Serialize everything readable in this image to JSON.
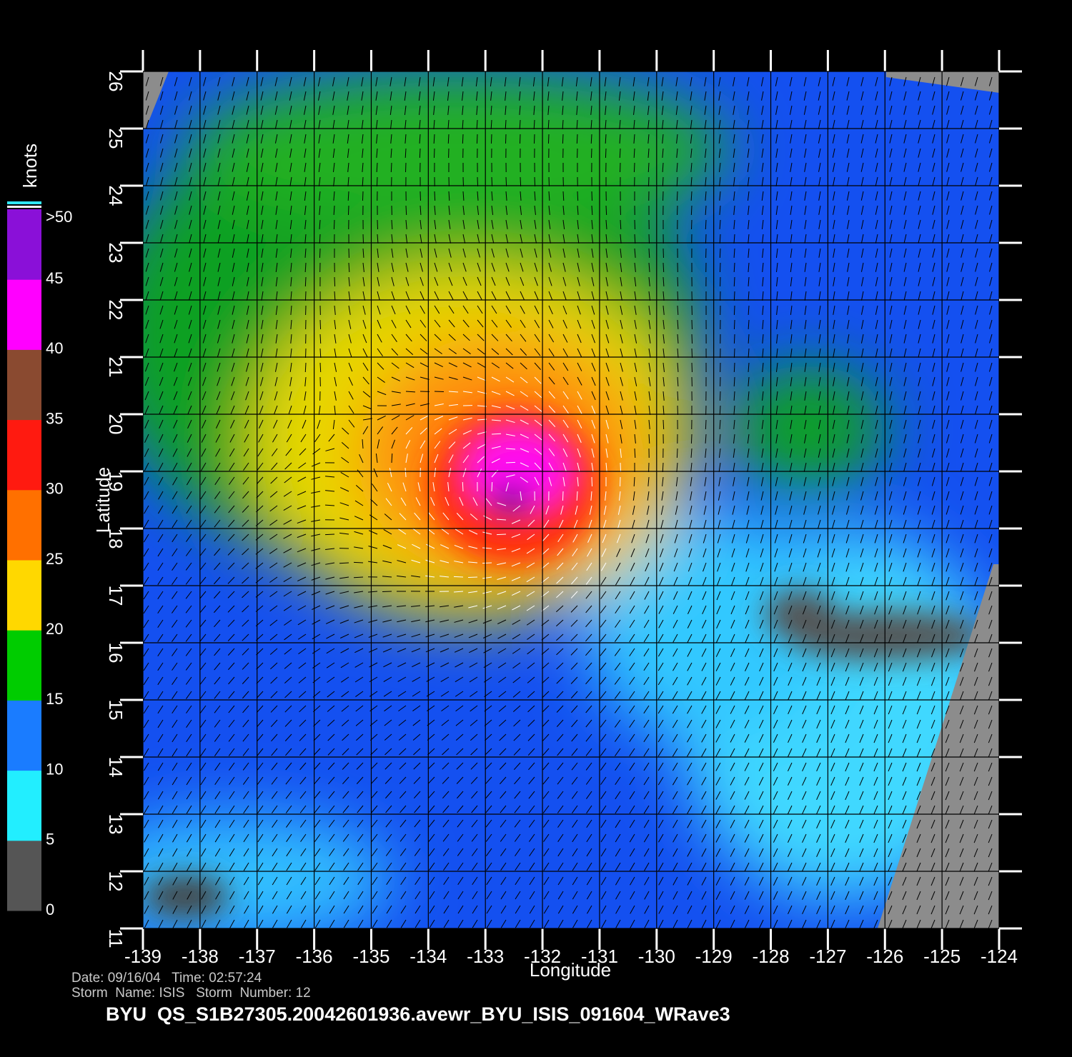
{
  "chart_data": {
    "type": "map",
    "x_label": "Longitude",
    "y_label": "Latitude",
    "xlim": [
      -139,
      -124
    ],
    "ylim": [
      11,
      26
    ],
    "xticks": [
      -139,
      -138,
      -137,
      -136,
      -135,
      -134,
      -133,
      -132,
      -131,
      -130,
      -129,
      -128,
      -127,
      -126,
      -125,
      -124
    ],
    "yticks": [
      11,
      12,
      13,
      14,
      15,
      16,
      17,
      18,
      19,
      20,
      21,
      22,
      23,
      24,
      25,
      26
    ],
    "grid": true,
    "colorbar": {
      "label": "knots",
      "lim": [
        0,
        50
      ],
      "ticks": [
        0,
        5,
        10,
        15,
        20,
        25,
        30,
        35,
        40,
        45,
        {
          "value": 50,
          "label": ">50"
        }
      ],
      "colors": [
        "#555555",
        "#22eeff",
        "#1a7cff",
        "#00cc00",
        "#ffd800",
        "#ff7000",
        "#ff1a10",
        "#8a4a30",
        "#ff00ff",
        "#8a10d8"
      ]
    },
    "info": [
      "Date: 09/16/04   Time: 02:57:24",
      "Storm  Name: ISIS   Storm  Number: 12"
    ],
    "footer": "BYU  QS_S1B27305.20042601936.avewr_BYU_ISIS_091604_WRave3"
  }
}
